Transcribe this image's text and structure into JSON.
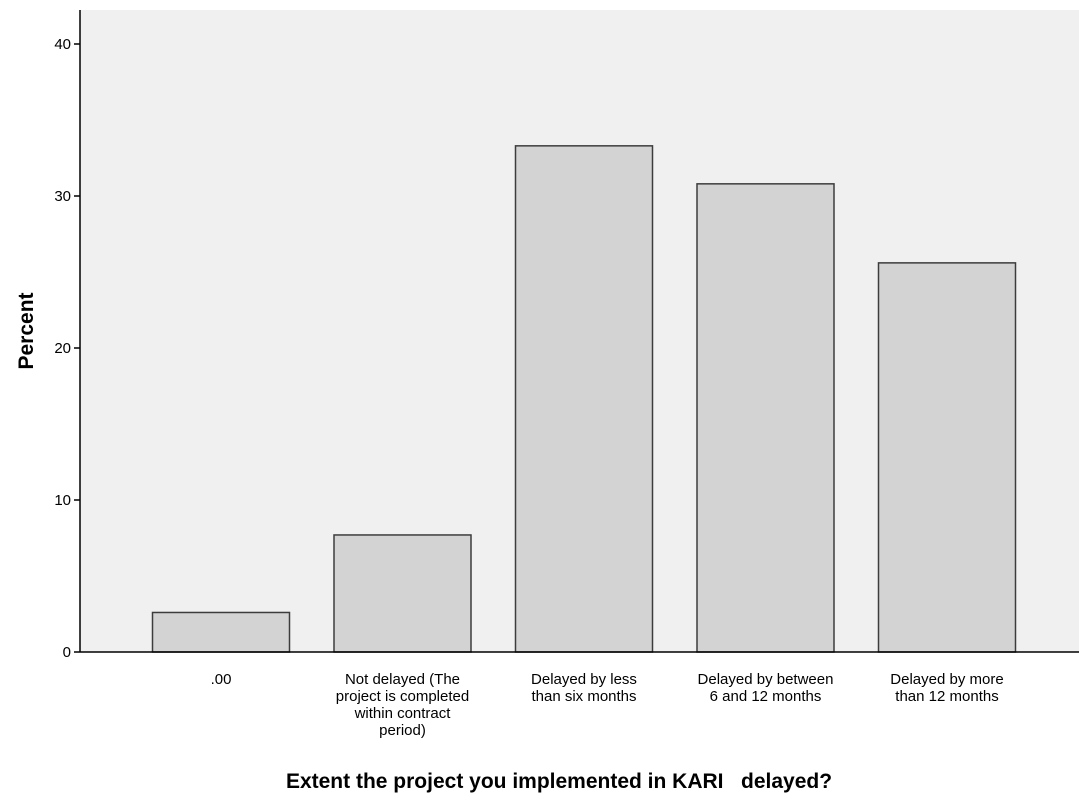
{
  "chart_data": {
    "type": "bar",
    "categories": [
      ".00",
      "Not delayed (The project is completed within contract period)",
      "Delayed by less than six months",
      "Delayed by between 6 and 12 months",
      "Delayed by more than 12 months"
    ],
    "category_lines": [
      [
        ".00"
      ],
      [
        "Not delayed (The",
        "project is completed",
        "within contract",
        "period)"
      ],
      [
        "Delayed by less",
        "than six months"
      ],
      [
        "Delayed by between",
        "6 and 12 months"
      ],
      [
        "Delayed by more",
        "than 12 months"
      ]
    ],
    "values": [
      2.6,
      7.7,
      33.3,
      30.8,
      25.6
    ],
    "xlabel": "Extent the project you implemented in KARI   delayed?",
    "ylabel": "Percent",
    "ylim": [
      0,
      42
    ],
    "yticks": [
      0,
      10,
      20,
      30,
      40
    ],
    "grid": false,
    "colors": {
      "plot_background": "#f0f0f0",
      "bar_fill": "#d3d3d3",
      "bar_stroke": "#3c3c3c",
      "axis": "#000000"
    }
  }
}
